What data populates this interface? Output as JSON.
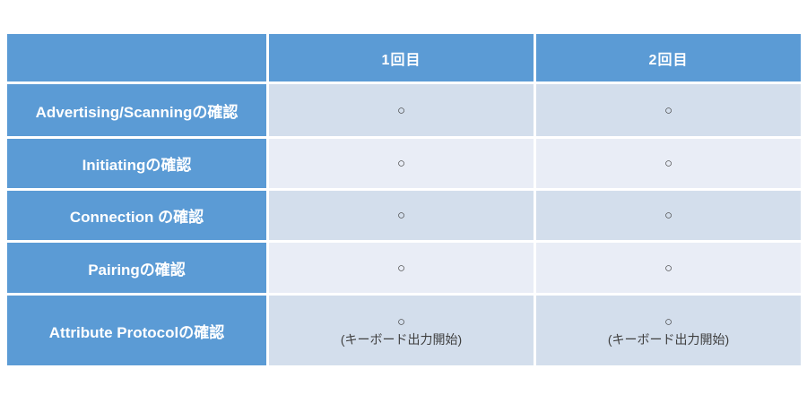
{
  "colors": {
    "header_blue": "#5B9BD5",
    "band_dark": "#D3DEEC",
    "band_light": "#E9EDF6",
    "header_text": "#ffffff",
    "body_text": "#3f3f3f",
    "page_background": "#ffffff"
  },
  "table": {
    "columns": [
      "",
      "1回目",
      "2回目"
    ],
    "rows": [
      {
        "label": "Advertising/Scanningの確認",
        "cells": [
          {
            "mark": "○",
            "note": ""
          },
          {
            "mark": "○",
            "note": ""
          }
        ]
      },
      {
        "label": "Initiatingの確認",
        "cells": [
          {
            "mark": "○",
            "note": ""
          },
          {
            "mark": "○",
            "note": ""
          }
        ]
      },
      {
        "label": "Connection の確認",
        "cells": [
          {
            "mark": "○",
            "note": ""
          },
          {
            "mark": "○",
            "note": ""
          }
        ]
      },
      {
        "label": "Pairingの確認",
        "cells": [
          {
            "mark": "○",
            "note": ""
          },
          {
            "mark": "○",
            "note": ""
          }
        ]
      },
      {
        "label": "Attribute Protocolの確認",
        "cells": [
          {
            "mark": "○",
            "note": "(キーボード出力開始)"
          },
          {
            "mark": "○",
            "note": "(キーボード出力開始)"
          }
        ]
      }
    ]
  }
}
